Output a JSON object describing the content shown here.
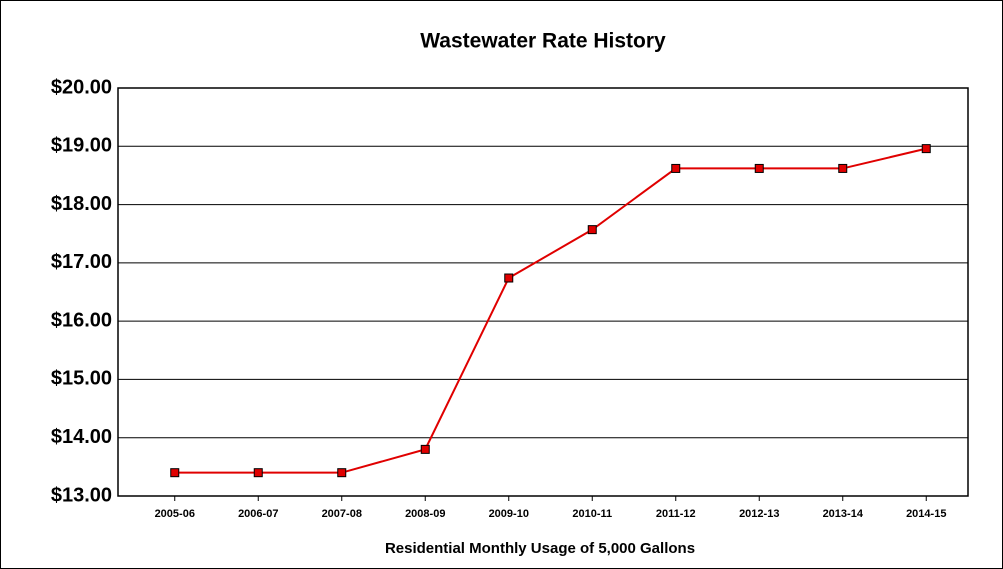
{
  "chart_data": {
    "type": "line",
    "title": "Wastewater Rate History",
    "x_label": "Residential Monthly Usage of 5,000 Gallons",
    "categories": [
      "2005-06",
      "2006-07",
      "2007-08",
      "2008-09",
      "2009-10",
      "2010-11",
      "2011-12",
      "2012-13",
      "2013-14",
      "2014-15"
    ],
    "series": [
      {
        "name": "Residential Monthly Usage of 5,000 Gallons",
        "color": "#e00000",
        "values": [
          13.4,
          13.4,
          13.4,
          13.8,
          16.74,
          17.57,
          18.62,
          18.62,
          18.62,
          18.96
        ]
      }
    ],
    "ylim": [
      13,
      20
    ],
    "yticks": [
      {
        "value": 13,
        "label": "$13.00"
      },
      {
        "value": 14,
        "label": "$14.00"
      },
      {
        "value": 15,
        "label": "$15.00"
      },
      {
        "value": 16,
        "label": "$16.00"
      },
      {
        "value": 17,
        "label": "$17.00"
      },
      {
        "value": 18,
        "label": "$18.00"
      },
      {
        "value": 19,
        "label": "$19.00"
      },
      {
        "value": 20,
        "label": "$20.00"
      }
    ],
    "grid": true
  }
}
